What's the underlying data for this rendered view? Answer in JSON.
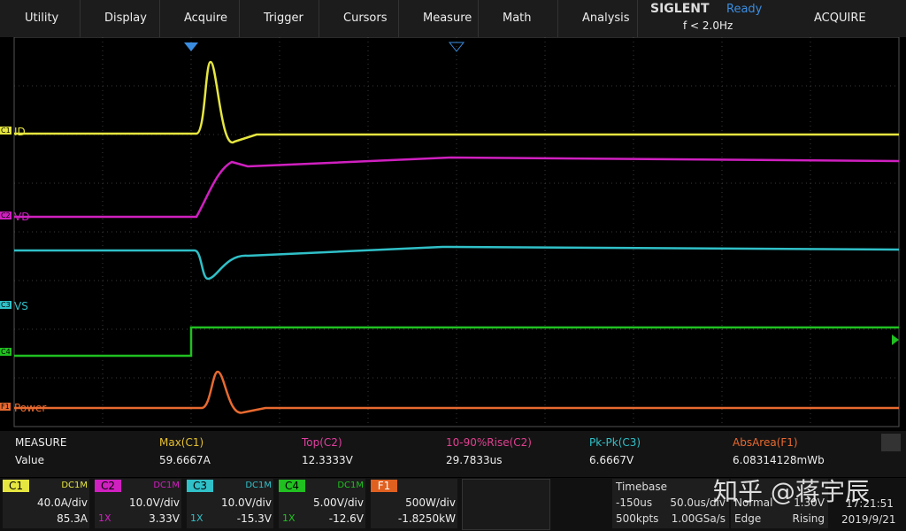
{
  "menu": [
    "Utility",
    "Display",
    "Acquire",
    "Trigger",
    "Cursors",
    "Measure",
    "Math",
    "Analysis"
  ],
  "brand": "SIGLENT",
  "status": "Ready",
  "frequency": "f < 2.0Hz",
  "mode": "ACQUIRE",
  "traces": [
    {
      "marker": "C1",
      "label": "ID"
    },
    {
      "marker": "C2",
      "label": "VD"
    },
    {
      "marker": "C3",
      "label": "VS"
    },
    {
      "marker": "C4"
    },
    {
      "marker": "F1",
      "label": "Power"
    }
  ],
  "measure": {
    "title": "MEASURE",
    "row_label": "Value",
    "items": [
      {
        "name": "Max(C1)",
        "value": "59.6667A"
      },
      {
        "name": "Top(C2)",
        "value": "12.3333V"
      },
      {
        "name": "10-90%Rise(C2)",
        "value": "29.7833us"
      },
      {
        "name": "Pk-Pk(C3)",
        "value": "6.6667V"
      },
      {
        "name": "AbsArea(F1)",
        "value": "6.08314128mWb"
      }
    ]
  },
  "channels": [
    {
      "name": "C1",
      "coupling": "DC1M",
      "scale": "40.0A/div",
      "offset": "85.3A"
    },
    {
      "name": "C2",
      "coupling": "DC1M",
      "probe": "1X",
      "scale": "10.0V/div",
      "offset": "3.33V"
    },
    {
      "name": "C3",
      "coupling": "DC1M",
      "probe": "1X",
      "scale": "10.0V/div",
      "offset": "-15.3V"
    },
    {
      "name": "C4",
      "coupling": "DC1M",
      "probe": "1X",
      "scale": "5.00V/div",
      "offset": "-12.6V"
    },
    {
      "name": "F1",
      "scale": "500W/div",
      "offset": "-1.8250kW"
    }
  ],
  "timebase": {
    "title": "Timebase",
    "delay": "-150us",
    "scale": "50.0us/div",
    "points": "500kpts",
    "rate": "1.00GSa/s"
  },
  "trigger": {
    "mode": "Normal",
    "level": "1.30V",
    "type": "Edge",
    "slope": "Rising"
  },
  "time": "17:21:51",
  "date": "2019/9/21",
  "watermark": "知乎 @蒋宇辰"
}
